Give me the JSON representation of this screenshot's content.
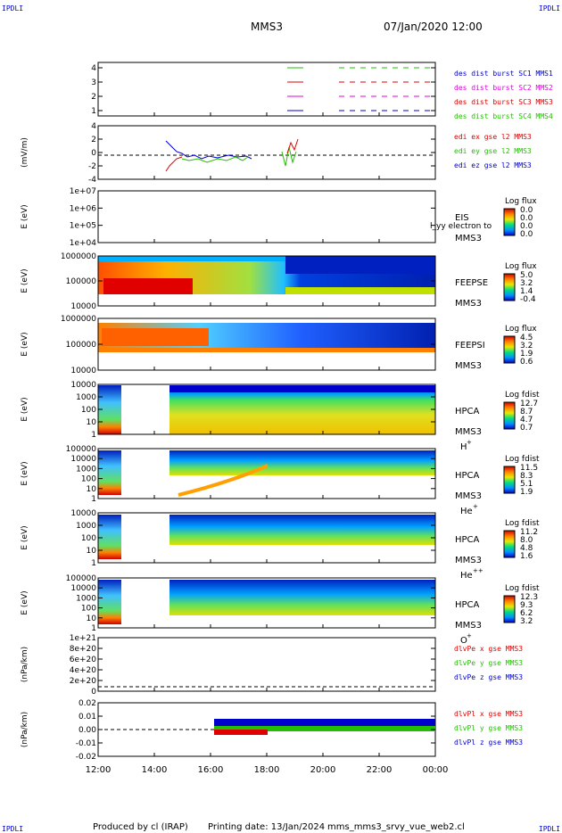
{
  "header": {
    "corner_tl": "IPDLI",
    "corner_tr": "IPDLI",
    "title": "MMS3",
    "date": "07/Jan/2020 12:00"
  },
  "footer": {
    "produced": "Produced by cl (IRAP)",
    "printing": "Printing date: 13/Jan/2024",
    "file": "mms_mms3_srvy_vue_web2.cl",
    "corner_bl": "IPDLI",
    "corner_br": "IPDLI"
  },
  "colors": {
    "red": "#e00000",
    "green": "#22c000",
    "blue": "#0000cc",
    "magenta": "#e000e0"
  },
  "chart_data": {
    "type": "heatmap",
    "x_ticks": [
      "12:00",
      "14:00",
      "16:00",
      "18:00",
      "20:00",
      "22:00",
      "00:00"
    ],
    "panels": [
      {
        "id": "burst",
        "type": "scatter",
        "y_ticks": [
          "4",
          "3",
          "2",
          "1"
        ],
        "legend": [
          {
            "text": "des dist burst SC1 MMS1",
            "color": "#0000cc"
          },
          {
            "text": "des dist burst SC2 MMS2",
            "color": "#e000e0"
          },
          {
            "text": "des dist burst SC3 MMS3",
            "color": "#e00000"
          },
          {
            "text": "des dist burst SC4 MMS4",
            "color": "#22c000"
          }
        ]
      },
      {
        "id": "edi",
        "type": "line",
        "ylabel": "(mV/m)",
        "y_ticks": [
          "4",
          "2",
          "0",
          "-2",
          "-4"
        ],
        "legend": [
          {
            "text": "edi ex gse l2 MMS3",
            "color": "#e00000"
          },
          {
            "text": "edi ey gse l2 MMS3",
            "color": "#22c000"
          },
          {
            "text": "edi ez gse l2 MMS3",
            "color": "#0000cc"
          }
        ]
      },
      {
        "id": "eis",
        "type": "heatmap",
        "ylabel": "E (eV)",
        "y_ticks": [
          "1e+07",
          "1e+06",
          "1e+05",
          "1e+04"
        ],
        "inst": "EIS",
        "sub": "MMS3",
        "overlay_text": "l_yy electron to",
        "cbar_title": "Log flux",
        "cbar_ticks": [
          "0.0",
          "0.0",
          "0.0",
          "0.0"
        ]
      },
      {
        "id": "feepse",
        "type": "heatmap",
        "ylabel": "E (eV)",
        "y_ticks": [
          "1000000",
          "100000",
          "10000"
        ],
        "inst": "FEEPSE",
        "sub": "MMS3",
        "cbar_title": "Log flux",
        "cbar_ticks": [
          "5.0",
          "3.2",
          "1.4",
          "-0.4"
        ]
      },
      {
        "id": "feepsi",
        "type": "heatmap",
        "ylabel": "E (eV)",
        "y_ticks": [
          "1000000",
          "100000",
          "10000"
        ],
        "inst": "FEEPSI",
        "sub": "MMS3",
        "cbar_title": "Log flux",
        "cbar_ticks": [
          "4.5",
          "3.2",
          "1.9",
          "0.6"
        ]
      },
      {
        "id": "hpca_h",
        "type": "heatmap",
        "ylabel": "E (eV)",
        "y_ticks": [
          "10000",
          "1000",
          "100",
          "10",
          "1"
        ],
        "inst": "HPCA",
        "sub": "MMS3",
        "species": "H",
        "charge": "+",
        "cbar_title": "Log fdist",
        "cbar_ticks": [
          "12.7",
          "8.7",
          "4.7",
          "0.7"
        ]
      },
      {
        "id": "hpca_he1",
        "type": "heatmap",
        "ylabel": "E (eV)",
        "y_ticks": [
          "100000",
          "10000",
          "1000",
          "100",
          "10",
          "1"
        ],
        "inst": "HPCA",
        "sub": "MMS3",
        "species": "He",
        "charge": "+",
        "cbar_title": "Log fdist",
        "cbar_ticks": [
          "11.5",
          "8.3",
          "5.1",
          "1.9"
        ]
      },
      {
        "id": "hpca_he2",
        "type": "heatmap",
        "ylabel": "E (eV)",
        "y_ticks": [
          "10000",
          "1000",
          "100",
          "10",
          "1"
        ],
        "inst": "HPCA",
        "sub": "MMS3",
        "species": "He",
        "charge": "++",
        "cbar_title": "Log fdist",
        "cbar_ticks": [
          "11.2",
          "8.0",
          "4.8",
          "1.6"
        ]
      },
      {
        "id": "hpca_o",
        "type": "heatmap",
        "ylabel": "E (eV)",
        "y_ticks": [
          "100000",
          "10000",
          "1000",
          "100",
          "10",
          "1"
        ],
        "inst": "HPCA",
        "sub": "MMS3",
        "species": "O",
        "charge": "+",
        "cbar_title": "Log fdist",
        "cbar_ticks": [
          "12.3",
          "9.3",
          "6.2",
          "3.2"
        ]
      },
      {
        "id": "dpe",
        "type": "line",
        "ylabel": "(nPa/km)",
        "y_ticks": [
          "1e+21",
          "8e+20",
          "6e+20",
          "4e+20",
          "2e+20",
          "0"
        ],
        "legend": [
          {
            "text": "dlvPe x gse MMS3",
            "color": "#e00000"
          },
          {
            "text": "dlvPe y gse MMS3",
            "color": "#22c000"
          },
          {
            "text": "dlvPe z gse MMS3",
            "color": "#0000cc"
          }
        ]
      },
      {
        "id": "dpi",
        "type": "line",
        "ylabel": "(nPa/km)",
        "y_ticks": [
          "0.02",
          "0.01",
          "0.00",
          "-0.01",
          "-0.02"
        ],
        "legend": [
          {
            "text": "dlvPl x gse MMS3",
            "color": "#e00000"
          },
          {
            "text": "dlvPl y gse MMS3",
            "color": "#22c000"
          },
          {
            "text": "dlvPl z gse MMS3",
            "color": "#0000cc"
          }
        ]
      }
    ]
  }
}
